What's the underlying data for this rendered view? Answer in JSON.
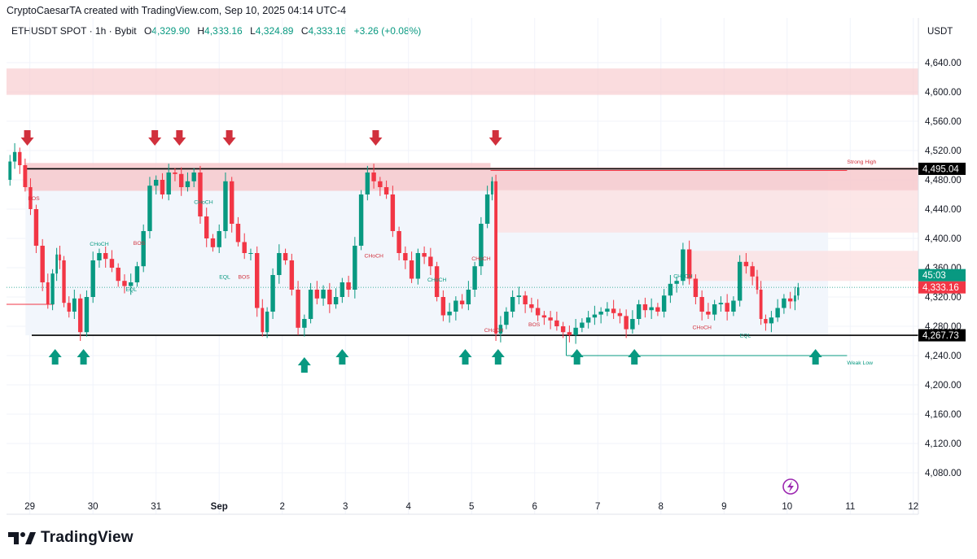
{
  "header": {
    "attribution": "CryptoCaesarTA created with TradingView.com, Sep 10, 2025 04:14 UTC-4",
    "symbol": "ETHUSDT SPOT · 1h · Bybit",
    "open_label": "O",
    "open": "4,329.90",
    "high_label": "H",
    "high": "4,333.16",
    "low_label": "L",
    "low": "4,324.89",
    "close_label": "C",
    "close": "4,333.16",
    "change": "+3.26 (+0.08%)",
    "currency": "USDT"
  },
  "brand": {
    "name": "TradingView",
    "icon": "tradingview-logo-icon"
  },
  "colors": {
    "up": "#089981",
    "down": "#f23645",
    "zone": "#f7c9cc",
    "zone_light": "#fbe2e3",
    "range_fill": "#f2f6fc",
    "arrow_down": "#d1303c",
    "arrow_up": "#089981"
  },
  "chart_data": {
    "type": "candlestick",
    "title": "ETHUSDT SPOT · 1h · Bybit",
    "ylim": [
      4050,
      4670
    ],
    "y_ticks": [
      4080,
      4120,
      4160,
      4200,
      4240,
      4280,
      4320,
      4360,
      4400,
      4440,
      4480,
      4520,
      4560,
      4600,
      4640
    ],
    "y_tick_labels": [
      "4,080.00",
      "4,120.00",
      "4,160.00",
      "4,200.00",
      "4,240.00",
      "4,280.00",
      "4,320.00",
      "4,360.00",
      "4,400.00",
      "4,440.00",
      "4,480.00",
      "4,520.00",
      "4,560.00",
      "4,600.00",
      "4,640.00"
    ],
    "x_ticks": [
      {
        "label": "29",
        "pos": 0
      },
      {
        "label": "30",
        "pos": 1
      },
      {
        "label": "31",
        "pos": 2
      },
      {
        "label": "Sep",
        "pos": 3
      },
      {
        "label": "2",
        "pos": 4
      },
      {
        "label": "3",
        "pos": 5
      },
      {
        "label": "4",
        "pos": 6
      },
      {
        "label": "5",
        "pos": 7
      },
      {
        "label": "6",
        "pos": 8
      },
      {
        "label": "7",
        "pos": 9
      },
      {
        "label": "8",
        "pos": 10
      },
      {
        "label": "9",
        "pos": 11
      },
      {
        "label": "10",
        "pos": 12
      },
      {
        "label": "11",
        "pos": 13
      },
      {
        "label": "12",
        "pos": 14
      }
    ],
    "x_range_days": [
      -0.37,
      14.08
    ],
    "closes": [
      [
        -0.35,
        4480
      ],
      [
        -0.28,
        4505
      ],
      [
        -0.2,
        4518
      ],
      [
        -0.12,
        4500
      ],
      [
        -0.03,
        4470
      ],
      [
        0.05,
        4440
      ],
      [
        0.15,
        4390
      ],
      [
        0.25,
        4340
      ],
      [
        0.32,
        4310
      ],
      [
        0.4,
        4352
      ],
      [
        0.45,
        4378
      ],
      [
        0.5,
        4370
      ],
      [
        0.58,
        4312
      ],
      [
        0.66,
        4300
      ],
      [
        0.75,
        4318
      ],
      [
        0.85,
        4272
      ],
      [
        0.95,
        4320
      ],
      [
        1.05,
        4370
      ],
      [
        1.15,
        4380
      ],
      [
        1.25,
        4372
      ],
      [
        1.35,
        4360
      ],
      [
        1.45,
        4342
      ],
      [
        1.55,
        4335
      ],
      [
        1.65,
        4340
      ],
      [
        1.75,
        4362
      ],
      [
        1.85,
        4410
      ],
      [
        1.95,
        4472
      ],
      [
        2.05,
        4480
      ],
      [
        2.15,
        4460
      ],
      [
        2.25,
        4490
      ],
      [
        2.35,
        4488
      ],
      [
        2.45,
        4470
      ],
      [
        2.55,
        4478
      ],
      [
        2.65,
        4490
      ],
      [
        2.75,
        4430
      ],
      [
        2.85,
        4400
      ],
      [
        2.95,
        4388
      ],
      [
        3.05,
        4410
      ],
      [
        3.15,
        4478
      ],
      [
        3.25,
        4420
      ],
      [
        3.35,
        4395
      ],
      [
        3.45,
        4380
      ],
      [
        3.55,
        4380
      ],
      [
        3.65,
        4305
      ],
      [
        3.72,
        4272
      ],
      [
        3.8,
        4300
      ],
      [
        3.9,
        4350
      ],
      [
        4.0,
        4380
      ],
      [
        4.1,
        4370
      ],
      [
        4.2,
        4330
      ],
      [
        4.3,
        4278
      ],
      [
        4.4,
        4290
      ],
      [
        4.5,
        4330
      ],
      [
        4.6,
        4318
      ],
      [
        4.7,
        4330
      ],
      [
        4.8,
        4310
      ],
      [
        4.9,
        4320
      ],
      [
        5.0,
        4340
      ],
      [
        5.1,
        4330
      ],
      [
        5.2,
        4390
      ],
      [
        5.3,
        4460
      ],
      [
        5.4,
        4490
      ],
      [
        5.5,
        4478
      ],
      [
        5.6,
        4470
      ],
      [
        5.7,
        4460
      ],
      [
        5.8,
        4410
      ],
      [
        5.9,
        4380
      ],
      [
        6.0,
        4370
      ],
      [
        6.1,
        4345
      ],
      [
        6.2,
        4380
      ],
      [
        6.3,
        4375
      ],
      [
        6.4,
        4362
      ],
      [
        6.5,
        4320
      ],
      [
        6.6,
        4295
      ],
      [
        6.7,
        4300
      ],
      [
        6.8,
        4315
      ],
      [
        6.9,
        4310
      ],
      [
        7.0,
        4330
      ],
      [
        7.1,
        4362
      ],
      [
        7.2,
        4420
      ],
      [
        7.3,
        4460
      ],
      [
        7.35,
        4478
      ],
      [
        7.42,
        4270
      ],
      [
        7.5,
        4282
      ],
      [
        7.6,
        4300
      ],
      [
        7.7,
        4320
      ],
      [
        7.8,
        4322
      ],
      [
        7.9,
        4310
      ],
      [
        8.0,
        4305
      ],
      [
        8.1,
        4295
      ],
      [
        8.2,
        4292
      ],
      [
        8.3,
        4288
      ],
      [
        8.4,
        4280
      ],
      [
        8.5,
        4272
      ],
      [
        8.6,
        4268
      ],
      [
        8.7,
        4278
      ],
      [
        8.8,
        4285
      ],
      [
        8.9,
        4292
      ],
      [
        9.0,
        4296
      ],
      [
        9.1,
        4300
      ],
      [
        9.2,
        4304
      ],
      [
        9.3,
        4298
      ],
      [
        9.4,
        4294
      ],
      [
        9.5,
        4276
      ],
      [
        9.6,
        4290
      ],
      [
        9.7,
        4310
      ],
      [
        9.8,
        4302
      ],
      [
        9.9,
        4306
      ],
      [
        10.0,
        4300
      ],
      [
        10.1,
        4322
      ],
      [
        10.2,
        4338
      ],
      [
        10.3,
        4342
      ],
      [
        10.4,
        4385
      ],
      [
        10.5,
        4345
      ],
      [
        10.6,
        4320
      ],
      [
        10.7,
        4300
      ],
      [
        10.8,
        4296
      ],
      [
        10.9,
        4310
      ],
      [
        11.0,
        4312
      ],
      [
        11.1,
        4300
      ],
      [
        11.2,
        4315
      ],
      [
        11.3,
        4368
      ],
      [
        11.4,
        4362
      ],
      [
        11.5,
        4348
      ],
      [
        11.55,
        4330
      ],
      [
        11.62,
        4290
      ],
      [
        11.7,
        4284
      ],
      [
        11.8,
        4292
      ],
      [
        11.9,
        4305
      ],
      [
        12.0,
        4318
      ],
      [
        12.1,
        4314
      ],
      [
        12.15,
        4322
      ],
      [
        12.2,
        4333.16
      ]
    ],
    "levels": [
      {
        "name": "range-high",
        "value": 4495.04,
        "label": "4,495.04"
      },
      {
        "name": "range-low",
        "value": 4267.73,
        "label": "4,267.73"
      }
    ],
    "current_price": {
      "value": 4333.16,
      "label": "4,333.16",
      "countdown": "45:03"
    },
    "zones": [
      {
        "from_day": -0.37,
        "to_day": 14.08,
        "low": 4596,
        "high": 4632
      },
      {
        "from_day": -0.07,
        "to_day": 7.3,
        "low": 4465,
        "high": 4503
      },
      {
        "from_day": 7.3,
        "to_day": 14.08,
        "low": 4465,
        "high": 4497
      },
      {
        "from_day": 7.4,
        "to_day": 14.08,
        "low": 4408,
        "high": 4466
      },
      {
        "from_day": 10.42,
        "to_day": 14.08,
        "low": 4342,
        "high": 4383
      }
    ],
    "annotations": [
      {
        "text": "Strong High",
        "day": 12.95,
        "value": 4502
      },
      {
        "text": "Weak Low",
        "day": 12.95,
        "value": 4228
      },
      {
        "text": "BOS",
        "day": -0.03,
        "value": 4452
      },
      {
        "text": "CHoCH",
        "day": 0.95,
        "value": 4390
      },
      {
        "text": "BOS",
        "day": 1.64,
        "value": 4391
      },
      {
        "text": "EQL",
        "day": 1.52,
        "value": 4328
      },
      {
        "text": "CHoCH",
        "day": 2.6,
        "value": 4447
      },
      {
        "text": "EQL",
        "day": 3.0,
        "value": 4345
      },
      {
        "text": "BOS",
        "day": 3.3,
        "value": 4345
      },
      {
        "text": "CHoCH",
        "day": 5.3,
        "value": 4374
      },
      {
        "text": "CHoCH",
        "day": 6.3,
        "value": 4341
      },
      {
        "text": "CHoCH",
        "day": 7.0,
        "value": 4370
      },
      {
        "text": "CHoCH",
        "day": 7.2,
        "value": 4272
      },
      {
        "text": "BOS",
        "day": 7.9,
        "value": 4280
      },
      {
        "text": "CHoCH",
        "day": 10.2,
        "value": 4346
      },
      {
        "text": "CHoCH",
        "day": 10.5,
        "value": 4276
      },
      {
        "text": "EQL",
        "day": 11.25,
        "value": 4265
      }
    ],
    "down_arrows": [
      -0.04,
      1.98,
      2.37,
      3.16,
      5.48,
      7.38
    ],
    "up_arrows": [
      0.4,
      0.85,
      4.35,
      4.95,
      6.9,
      7.42,
      8.67,
      9.58,
      12.45
    ],
    "grid": true
  }
}
